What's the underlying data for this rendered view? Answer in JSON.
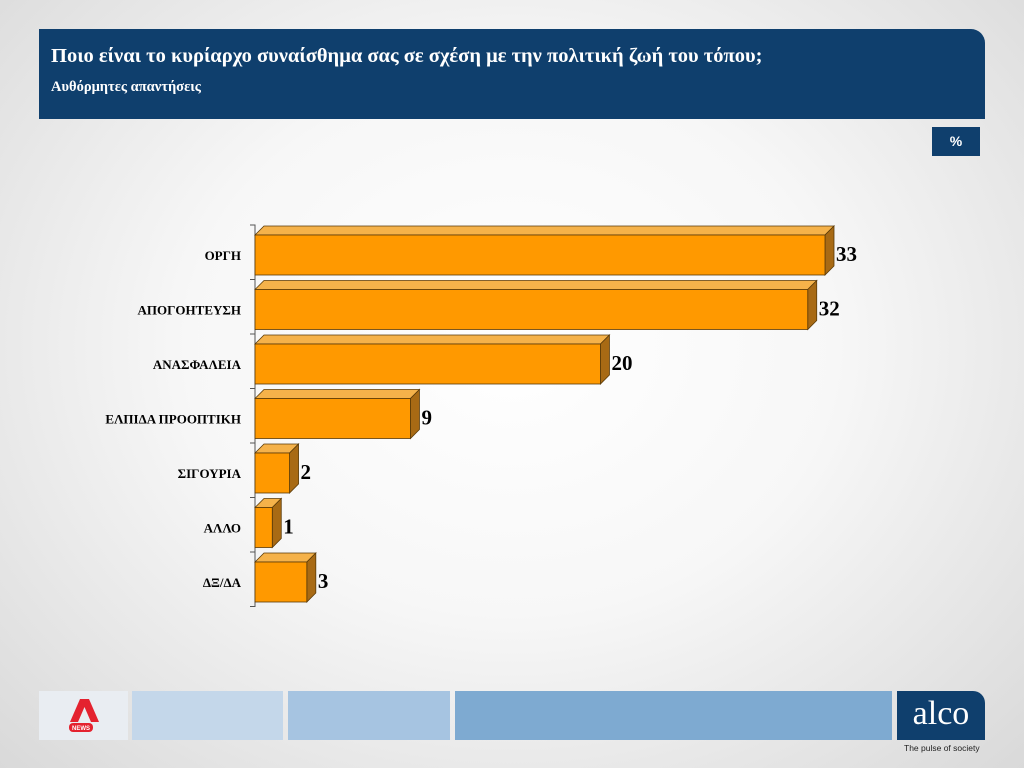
{
  "header": {
    "title": "Ποιο είναι το κυρίαρχο συναίσθημα σας σε σχέση με την πολιτική ζωή του τόπου;",
    "subtitle": "Αυθόρμητες απαντήσεις"
  },
  "unit_badge": "%",
  "colors": {
    "header_bg": "#0f3f6d",
    "bar_front": "#ff9900",
    "bar_top": "#f5b24a",
    "bar_side": "#a86a14",
    "news_logo_red": "#e4222f"
  },
  "chart_data": {
    "type": "bar",
    "orientation": "horizontal",
    "style": "3d",
    "categories": [
      "ΟΡΓΗ",
      "ΑΠΟΓΟΗΤΕΥΣΗ",
      "ΑΝΑΣΦΑΛΕΙΑ",
      "ΕΛΠΙΔΑ ΠΡΟΟΠΤΙΚΗ",
      "ΣΙΓΟΥΡΙΑ",
      "ΑΛΛΟ",
      "ΔΞ/ΔΑ"
    ],
    "values": [
      33,
      32,
      20,
      9,
      2,
      1,
      3
    ],
    "data_labels": [
      "33",
      "32",
      "20",
      "9",
      "2",
      "1",
      "3"
    ],
    "xlim": [
      0,
      33
    ],
    "grid": false,
    "legend": "none"
  },
  "footer": {
    "news_logo_icon": "alpha-news-logo",
    "news_logo_text": "NEWS",
    "brand": "alco",
    "tagline": "The pulse of society"
  }
}
